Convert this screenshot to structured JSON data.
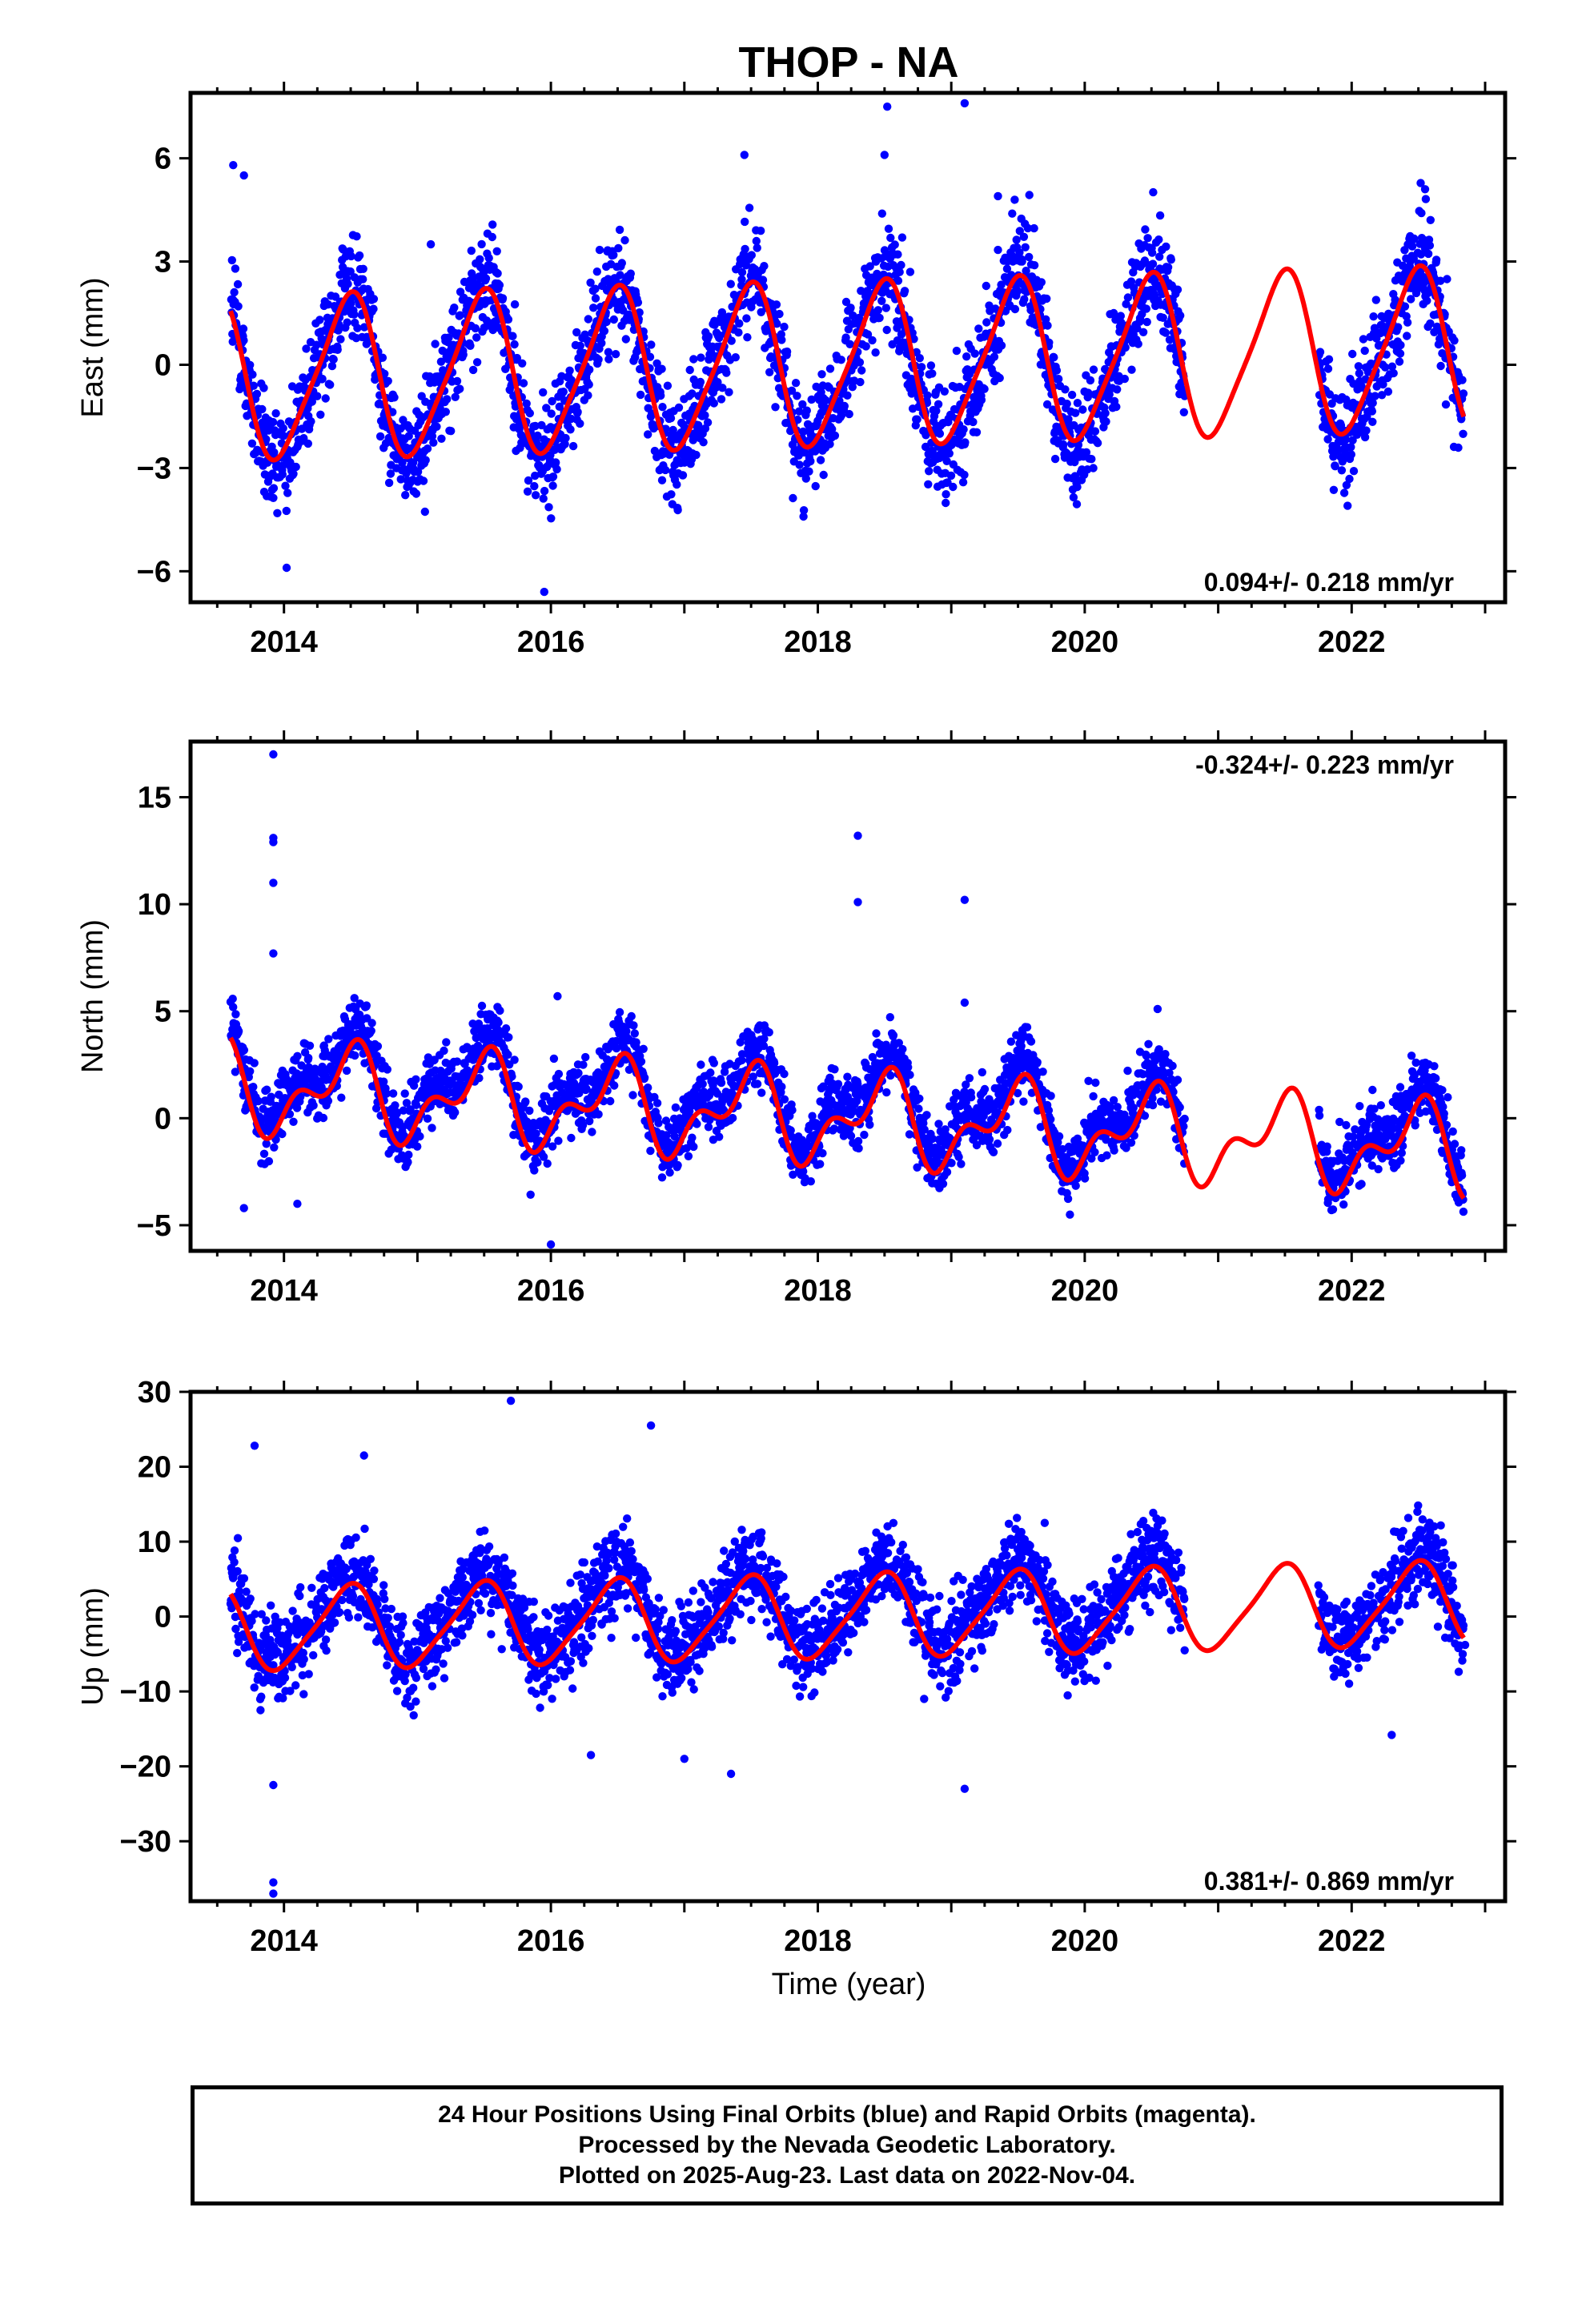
{
  "title": "THOP - NA",
  "xlabel": "Time (year)",
  "footer": {
    "line1": "24 Hour Positions Using Final Orbits (blue) and Rapid Orbits (magenta).",
    "line2": "Processed by the Nevada Geodetic Laboratory.",
    "line3": "Plotted on 2025-Aug-23. Last data on 2022-Nov-04."
  },
  "colors": {
    "points": "#0000ff",
    "fit": "#ff0000",
    "axis": "#000000"
  },
  "chart_data": [
    {
      "type": "scatter",
      "ylabel": "East (mm)",
      "rate_label": "0.094+/- 0.218 mm/yr",
      "rate_position": "bottom-right",
      "xlim": [
        2013.3,
        2023.15
      ],
      "ylim": [
        -6.9,
        7.9
      ],
      "x_ticks": [
        2014,
        2016,
        2018,
        2020,
        2022
      ],
      "y_ticks": [
        -6,
        -3,
        0,
        3,
        6
      ],
      "data_span": [
        2013.6,
        2022.84
      ],
      "gaps": [
        [
          2020.75,
          2021.75
        ]
      ],
      "series": [
        {
          "name": "Final Orbits",
          "color": "#0000ff",
          "style": "points",
          "model": {
            "offset": 0,
            "trend": 0.094,
            "annual": 2.4,
            "semiannual": 0.4,
            "noise": 1.1
          },
          "outliers": [
            [
              2013.62,
              5.8
            ],
            [
              2013.7,
              5.5
            ],
            [
              2014.02,
              -5.9
            ],
            [
              2015.1,
              3.5
            ],
            [
              2015.95,
              -6.6
            ],
            [
              2017.45,
              6.1
            ],
            [
              2018.52,
              7.5
            ],
            [
              2018.5,
              6.1
            ],
            [
              2019.1,
              7.6
            ],
            [
              2019.35,
              4.9
            ],
            [
              2022.55,
              5.1
            ]
          ]
        },
        {
          "name": "Fit",
          "color": "#ff0000",
          "style": "line",
          "fit": {
            "trend": 0.094,
            "t0": 2018.2,
            "annual": 2.3,
            "semiannual": 0.4,
            "start": 2013.6,
            "end": 2022.84
          }
        }
      ]
    },
    {
      "type": "scatter",
      "ylabel": "North (mm)",
      "rate_label": "-0.324+/- 0.223 mm/yr",
      "rate_position": "top-right",
      "xlim": [
        2013.3,
        2023.15
      ],
      "ylim": [
        -6.2,
        17.6
      ],
      "x_ticks": [
        2014,
        2016,
        2018,
        2020,
        2022
      ],
      "y_ticks": [
        -5,
        0,
        5,
        10,
        15
      ],
      "data_span": [
        2013.6,
        2022.84
      ],
      "gaps": [
        [
          2020.75,
          2021.75
        ]
      ],
      "series": [
        {
          "name": "Final Orbits",
          "color": "#0000ff",
          "style": "points",
          "model": {
            "offset": 0.6,
            "trend": -0.324,
            "annual": 1.8,
            "semiannual": 1.1,
            "noise": 1.1
          },
          "outliers": [
            [
              2013.92,
              17.0
            ],
            [
              2013.92,
              13.1
            ],
            [
              2013.92,
              12.9
            ],
            [
              2013.92,
              11.0
            ],
            [
              2013.92,
              7.7
            ],
            [
              2018.3,
              13.2
            ],
            [
              2018.3,
              10.1
            ],
            [
              2019.1,
              10.2
            ],
            [
              2019.1,
              5.4
            ],
            [
              2015.6,
              5.2
            ],
            [
              2016.05,
              5.7
            ],
            [
              2013.7,
              -4.2
            ],
            [
              2014.1,
              -4.0
            ],
            [
              2016.0,
              -5.9
            ]
          ]
        },
        {
          "name": "Fit",
          "color": "#ff0000",
          "style": "line",
          "fit": {
            "trend": -0.324,
            "t0": 2018.2,
            "annual": 1.7,
            "semiannual": 1.1,
            "start": 2013.6,
            "end": 2022.84
          }
        }
      ]
    },
    {
      "type": "scatter",
      "ylabel": "Up (mm)",
      "rate_label": "0.381+/- 0.869 mm/yr",
      "rate_position": "bottom-right",
      "xlim": [
        2013.3,
        2023.15
      ],
      "ylim": [
        -38,
        30
      ],
      "x_ticks": [
        2014,
        2016,
        2018,
        2020,
        2022
      ],
      "y_ticks": [
        -30,
        -20,
        -10,
        0,
        10,
        20,
        30
      ],
      "data_span": [
        2013.6,
        2022.84
      ],
      "gaps": [
        [
          2020.75,
          2021.75
        ]
      ],
      "series": [
        {
          "name": "Final Orbits",
          "color": "#0000ff",
          "style": "points",
          "model": {
            "offset": 1.0,
            "trend": 0.381,
            "annual": 5.5,
            "semiannual": 1.0,
            "noise": 4.0
          },
          "outliers": [
            [
              2013.92,
              -37.0
            ],
            [
              2013.92,
              -35.5
            ],
            [
              2013.92,
              -22.5
            ],
            [
              2013.78,
              22.8
            ],
            [
              2015.7,
              28.8
            ],
            [
              2016.75,
              25.5
            ],
            [
              2014.6,
              21.5
            ],
            [
              2016.3,
              -18.5
            ],
            [
              2017.35,
              -21.0
            ],
            [
              2019.1,
              -23.0
            ],
            [
              2022.3,
              -15.8
            ],
            [
              2022.85,
              -3.8
            ],
            [
              2019.7,
              12.5
            ],
            [
              2017.0,
              -19.0
            ]
          ]
        },
        {
          "name": "Fit",
          "color": "#ff0000",
          "style": "line",
          "fit": {
            "trend": 0.381,
            "t0": 2018.2,
            "annual": 5.4,
            "semiannual": 1.0,
            "start": 2013.6,
            "end": 2022.84
          }
        }
      ]
    }
  ]
}
